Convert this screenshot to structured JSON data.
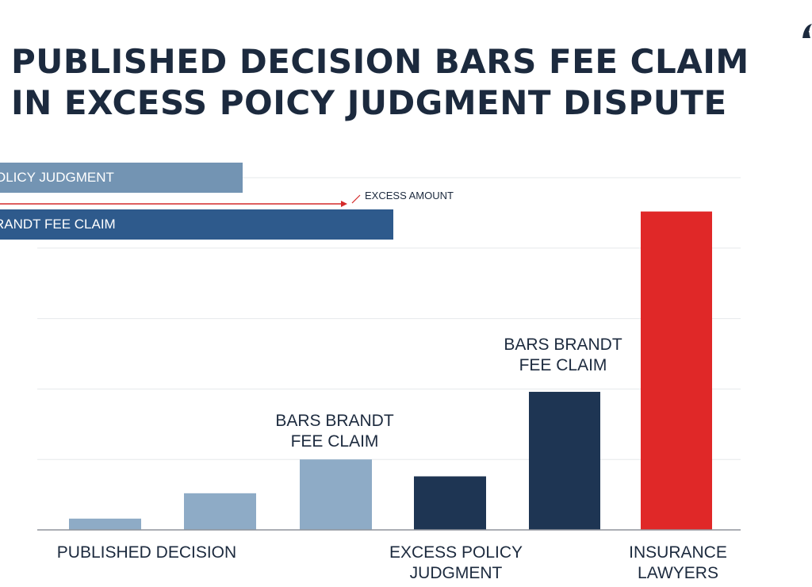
{
  "title": {
    "line1": "PUBLISHED DECISION BARS FEE CLAIM",
    "line2": "IN EXCESS POICY JUDGMENT DISPUTE"
  },
  "overlay": {
    "policy_bar_label": "OLICY JUDGMENT",
    "brandt_bar_label": "RANDT FEE CLAIM",
    "excess_label": "EXCESS AMOUNT"
  },
  "chart_data": {
    "type": "bar",
    "title": "PUBLISHED DECISION BARS FEE CLAIM IN EXCESS POICY JUDGMENT DISPUTE",
    "values": [
      4,
      13,
      25,
      19,
      49,
      113
    ],
    "bar_colors": [
      "#8eabc6",
      "#8eabc6",
      "#8eabc6",
      "#1e3553",
      "#1e3553",
      "#e02828"
    ],
    "ylim": [
      0,
      125
    ],
    "grid": true,
    "category_labels": {
      "published": "PUBLISHED DECISION",
      "excess_line1": "EXCESS POLICY",
      "excess_line2": "JUDGMENT",
      "insurance_line1": "INSURANCE",
      "insurance_line2": "LAWYERS"
    },
    "annotations": [
      {
        "line1": "BARS BRANDT",
        "line2": "FEE CLAIM"
      },
      {
        "line1": "BARS BRANDT",
        "line2": "FEE CLAIM"
      }
    ],
    "horizontal_bars": [
      {
        "label": "OLICY JUDGMENT"
      },
      {
        "label": "RANDT FEE CLAIM"
      }
    ]
  },
  "colors": {
    "title": "#1c2a3e",
    "light_bar": "#8eabc6",
    "dark_bar": "#1e3553",
    "red_bar": "#e02828",
    "arrow": "#d42a2a"
  }
}
